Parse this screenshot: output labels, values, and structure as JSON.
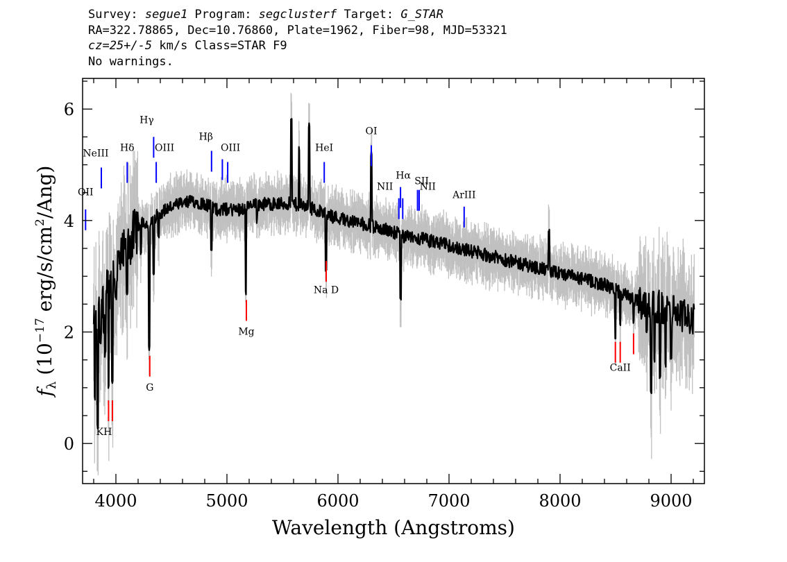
{
  "header": {
    "line1": {
      "survey_label": "Survey: ",
      "survey": "segue1",
      "program_label": " Program: ",
      "program": "segclusterf",
      "target_label": " Target: ",
      "target": "G_STAR"
    },
    "line2": "RA=322.78865, Dec=10.76860, Plate=1962, Fiber=98, MJD=53321",
    "line3": {
      "cz": "cz=25+/-5",
      "rest": " km/s Class=STAR F9"
    },
    "line4": "No warnings."
  },
  "chart_data": {
    "type": "line",
    "xlabel": "Wavelength (Angstroms)",
    "ylabel": "f_λ (10^-17 erg/s/cm^2/Ang)",
    "ylabel_parts": {
      "f": "f",
      "lambda": "λ",
      "open": " (10",
      "exp1": "−17",
      "mid": " erg/s/cm",
      "exp2": "2",
      "close": "/Ang)"
    },
    "xlim": [
      3700,
      9300
    ],
    "ylim": [
      -0.72,
      6.55
    ],
    "xticks": [
      4000,
      5000,
      6000,
      7000,
      8000,
      9000
    ],
    "yticks": [
      0,
      2,
      4,
      6
    ],
    "colors": {
      "flux": "#000000",
      "noise_band": "#c0c0c0",
      "emission_line": "#0000ff",
      "absorption_line": "#ff0000"
    },
    "continuum": [
      [
        3800,
        2.0
      ],
      [
        3850,
        2.3
      ],
      [
        3900,
        2.6
      ],
      [
        3950,
        2.9
      ],
      [
        4000,
        3.1
      ],
      [
        4050,
        3.3
      ],
      [
        4100,
        3.5
      ],
      [
        4150,
        3.7
      ],
      [
        4200,
        3.9
      ],
      [
        4250,
        4.0
      ],
      [
        4300,
        3.9
      ],
      [
        4350,
        4.05
      ],
      [
        4400,
        4.15
      ],
      [
        4500,
        4.25
      ],
      [
        4600,
        4.3
      ],
      [
        4700,
        4.35
      ],
      [
        4800,
        4.3
      ],
      [
        4900,
        4.2
      ],
      [
        5000,
        4.2
      ],
      [
        5100,
        4.2
      ],
      [
        5200,
        4.25
      ],
      [
        5300,
        4.3
      ],
      [
        5400,
        4.3
      ],
      [
        5500,
        4.3
      ],
      [
        5600,
        4.3
      ],
      [
        5700,
        4.25
      ],
      [
        5800,
        4.2
      ],
      [
        5900,
        4.1
      ],
      [
        6000,
        4.05
      ],
      [
        6100,
        4.0
      ],
      [
        6200,
        3.95
      ],
      [
        6300,
        3.9
      ],
      [
        6400,
        3.85
      ],
      [
        6500,
        3.8
      ],
      [
        6600,
        3.7
      ],
      [
        6700,
        3.7
      ],
      [
        6800,
        3.65
      ],
      [
        6900,
        3.6
      ],
      [
        7000,
        3.55
      ],
      [
        7100,
        3.5
      ],
      [
        7200,
        3.45
      ],
      [
        7300,
        3.4
      ],
      [
        7400,
        3.35
      ],
      [
        7500,
        3.3
      ],
      [
        7600,
        3.25
      ],
      [
        7700,
        3.2
      ],
      [
        7800,
        3.15
      ],
      [
        7900,
        3.1
      ],
      [
        8000,
        3.05
      ],
      [
        8100,
        3.0
      ],
      [
        8200,
        2.95
      ],
      [
        8300,
        2.9
      ],
      [
        8400,
        2.85
      ],
      [
        8500,
        2.75
      ],
      [
        8600,
        2.65
      ],
      [
        8700,
        2.55
      ],
      [
        8800,
        2.5
      ],
      [
        8900,
        2.45
      ],
      [
        9000,
        2.4
      ],
      [
        9100,
        2.3
      ],
      [
        9200,
        2.2
      ]
    ],
    "features": [
      [
        3810,
        0.8
      ],
      [
        3835,
        0.3
      ],
      [
        3860,
        1.8
      ],
      [
        3890,
        2.0
      ],
      [
        3905,
        1.6
      ],
      [
        3934,
        1.0
      ],
      [
        3968,
        1.1
      ],
      [
        4000,
        2.6
      ],
      [
        4101,
        2.7
      ],
      [
        4226,
        3.4
      ],
      [
        4300,
        1.7
      ],
      [
        4340,
        3.0
      ],
      [
        4383,
        3.7
      ],
      [
        4861,
        3.5
      ],
      [
        5170,
        2.7
      ],
      [
        5270,
        4.0
      ],
      [
        5580,
        5.8
      ],
      [
        5650,
        5.3
      ],
      [
        5740,
        5.7
      ],
      [
        5892,
        3.1
      ],
      [
        6300,
        5.2
      ],
      [
        6563,
        2.6
      ],
      [
        7900,
        3.8
      ],
      [
        8498,
        1.9
      ],
      [
        8542,
        2.1
      ],
      [
        8662,
        2.2
      ],
      [
        8780,
        2.0
      ],
      [
        8820,
        0.9
      ],
      [
        8850,
        1.5
      ],
      [
        8900,
        1.2
      ],
      [
        8950,
        1.4
      ],
      [
        9000,
        1.5
      ]
    ],
    "emission_lines": [
      {
        "name": "OII",
        "label": "OII",
        "wave": 3727,
        "y": 4.2,
        "label_y": 4.45,
        "label_dx": 0
      },
      {
        "name": "NeIII",
        "label": "NeIII",
        "wave": 3869,
        "y": 4.95,
        "label_y": 5.15,
        "label_dx": -8
      },
      {
        "name": "Hdelta",
        "label": "Hδ",
        "wave": 4102,
        "y": 5.05,
        "label_y": 5.25,
        "label_dx": 0
      },
      {
        "name": "Hgamma",
        "label": "Hγ",
        "wave": 4340,
        "y": 5.5,
        "label_y": 5.75,
        "label_dx": -10
      },
      {
        "name": "OIII-4363",
        "label": "OIII",
        "wave": 4363,
        "y": 5.05,
        "label_y": 5.25,
        "label_dx": 12
      },
      {
        "name": "Hbeta",
        "label": "Hβ",
        "wave": 4861,
        "y": 5.25,
        "label_y": 5.45,
        "label_dx": -8
      },
      {
        "name": "OIII-4959",
        "label": "",
        "wave": 4959,
        "y": 5.1,
        "label_y": 5.25,
        "label_dx": 0
      },
      {
        "name": "OIII-5007",
        "label": "OIII",
        "wave": 5007,
        "y": 5.05,
        "label_y": 5.25,
        "label_dx": 4
      },
      {
        "name": "HeI",
        "label": "HeI",
        "wave": 5876,
        "y": 5.05,
        "label_y": 5.25,
        "label_dx": 0
      },
      {
        "name": "OI",
        "label": "OI",
        "wave": 6300,
        "y": 5.35,
        "label_y": 5.55,
        "label_dx": 0
      },
      {
        "name": "NII-6548",
        "label": "NII",
        "wave": 6548,
        "y": 4.4,
        "label_y": 4.55,
        "label_dx": -20
      },
      {
        "name": "Halpha",
        "label": "Hα",
        "wave": 6563,
        "y": 4.6,
        "label_y": 4.75,
        "label_dx": 4
      },
      {
        "name": "NII-6583",
        "label": "NII",
        "wave": 6583,
        "y": 4.4,
        "label_y": 4.55,
        "label_dx": 36
      },
      {
        "name": "SII-6716",
        "label": "SII",
        "wave": 6716,
        "y": 4.55,
        "label_y": 4.65,
        "label_dx": 6
      },
      {
        "name": "SII-6731",
        "label": "",
        "wave": 6731,
        "y": 4.55,
        "label_y": 4.65,
        "label_dx": 0
      },
      {
        "name": "ArIII",
        "label": "ArIII",
        "wave": 7136,
        "y": 4.25,
        "label_y": 4.4,
        "label_dx": 0
      }
    ],
    "absorption_lines": [
      {
        "name": "K",
        "label": "",
        "wave": 3934,
        "y": 0.4,
        "label_y": 0.15,
        "label_dx": 0
      },
      {
        "name": "H",
        "label": "KH",
        "wave": 3969,
        "y": 0.4,
        "label_y": 0.15,
        "label_dx": -12
      },
      {
        "name": "G",
        "label": "G",
        "wave": 4305,
        "y": 1.2,
        "label_y": 0.95,
        "label_dx": 0
      },
      {
        "name": "Mg",
        "label": "Mg",
        "wave": 5175,
        "y": 2.2,
        "label_y": 1.95,
        "label_dx": 0
      },
      {
        "name": "NaD",
        "label": "Na D",
        "wave": 5894,
        "y": 2.9,
        "label_y": 2.7,
        "label_dx": 0
      },
      {
        "name": "CaII-8498",
        "label": "",
        "wave": 8498,
        "y": 1.45,
        "label_y": 1.3,
        "label_dx": 0
      },
      {
        "name": "CaII-8542",
        "label": "CaII",
        "wave": 8542,
        "y": 1.45,
        "label_y": 1.3,
        "label_dx": 0
      },
      {
        "name": "CaII-8662",
        "label": "",
        "wave": 8662,
        "y": 1.6,
        "label_y": 1.3,
        "label_dx": 0
      }
    ]
  }
}
